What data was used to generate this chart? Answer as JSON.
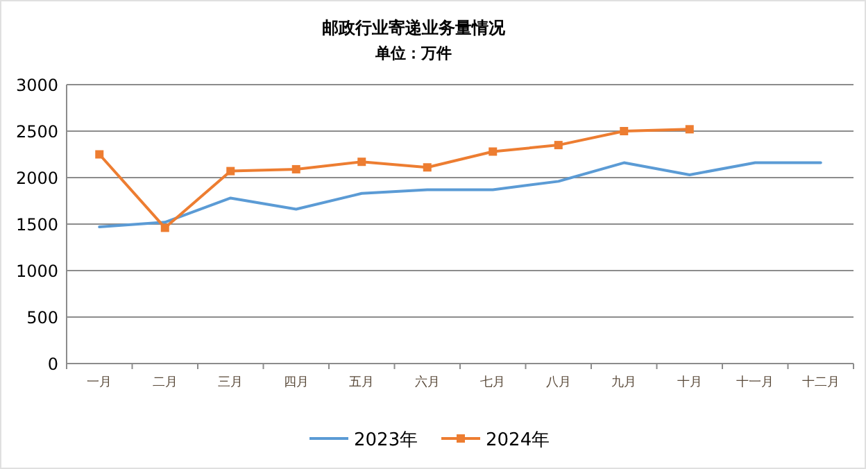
{
  "chart_data": {
    "type": "line",
    "title": "邮政行业寄递业务量情况",
    "subtitle": "单位：万件",
    "categories": [
      "一月",
      "二月",
      "三月",
      "四月",
      "五月",
      "六月",
      "七月",
      "八月",
      "九月",
      "十月",
      "十一月",
      "十二月"
    ],
    "series": [
      {
        "name": "2023年",
        "color": "#5b9bd5",
        "marker": "none",
        "values": [
          1470,
          1520,
          1780,
          1660,
          1830,
          1870,
          1870,
          1960,
          2160,
          2030,
          2160,
          2160
        ]
      },
      {
        "name": "2024年",
        "color": "#ed7d31",
        "marker": "square",
        "values": [
          2250,
          1460,
          2070,
          2090,
          2170,
          2110,
          2280,
          2350,
          2500,
          2520,
          null,
          null
        ]
      }
    ],
    "ylim": [
      0,
      3000
    ],
    "yticks": [
      0,
      500,
      1000,
      1500,
      2000,
      2500,
      3000
    ],
    "grid": "y",
    "legend": "bottom"
  }
}
